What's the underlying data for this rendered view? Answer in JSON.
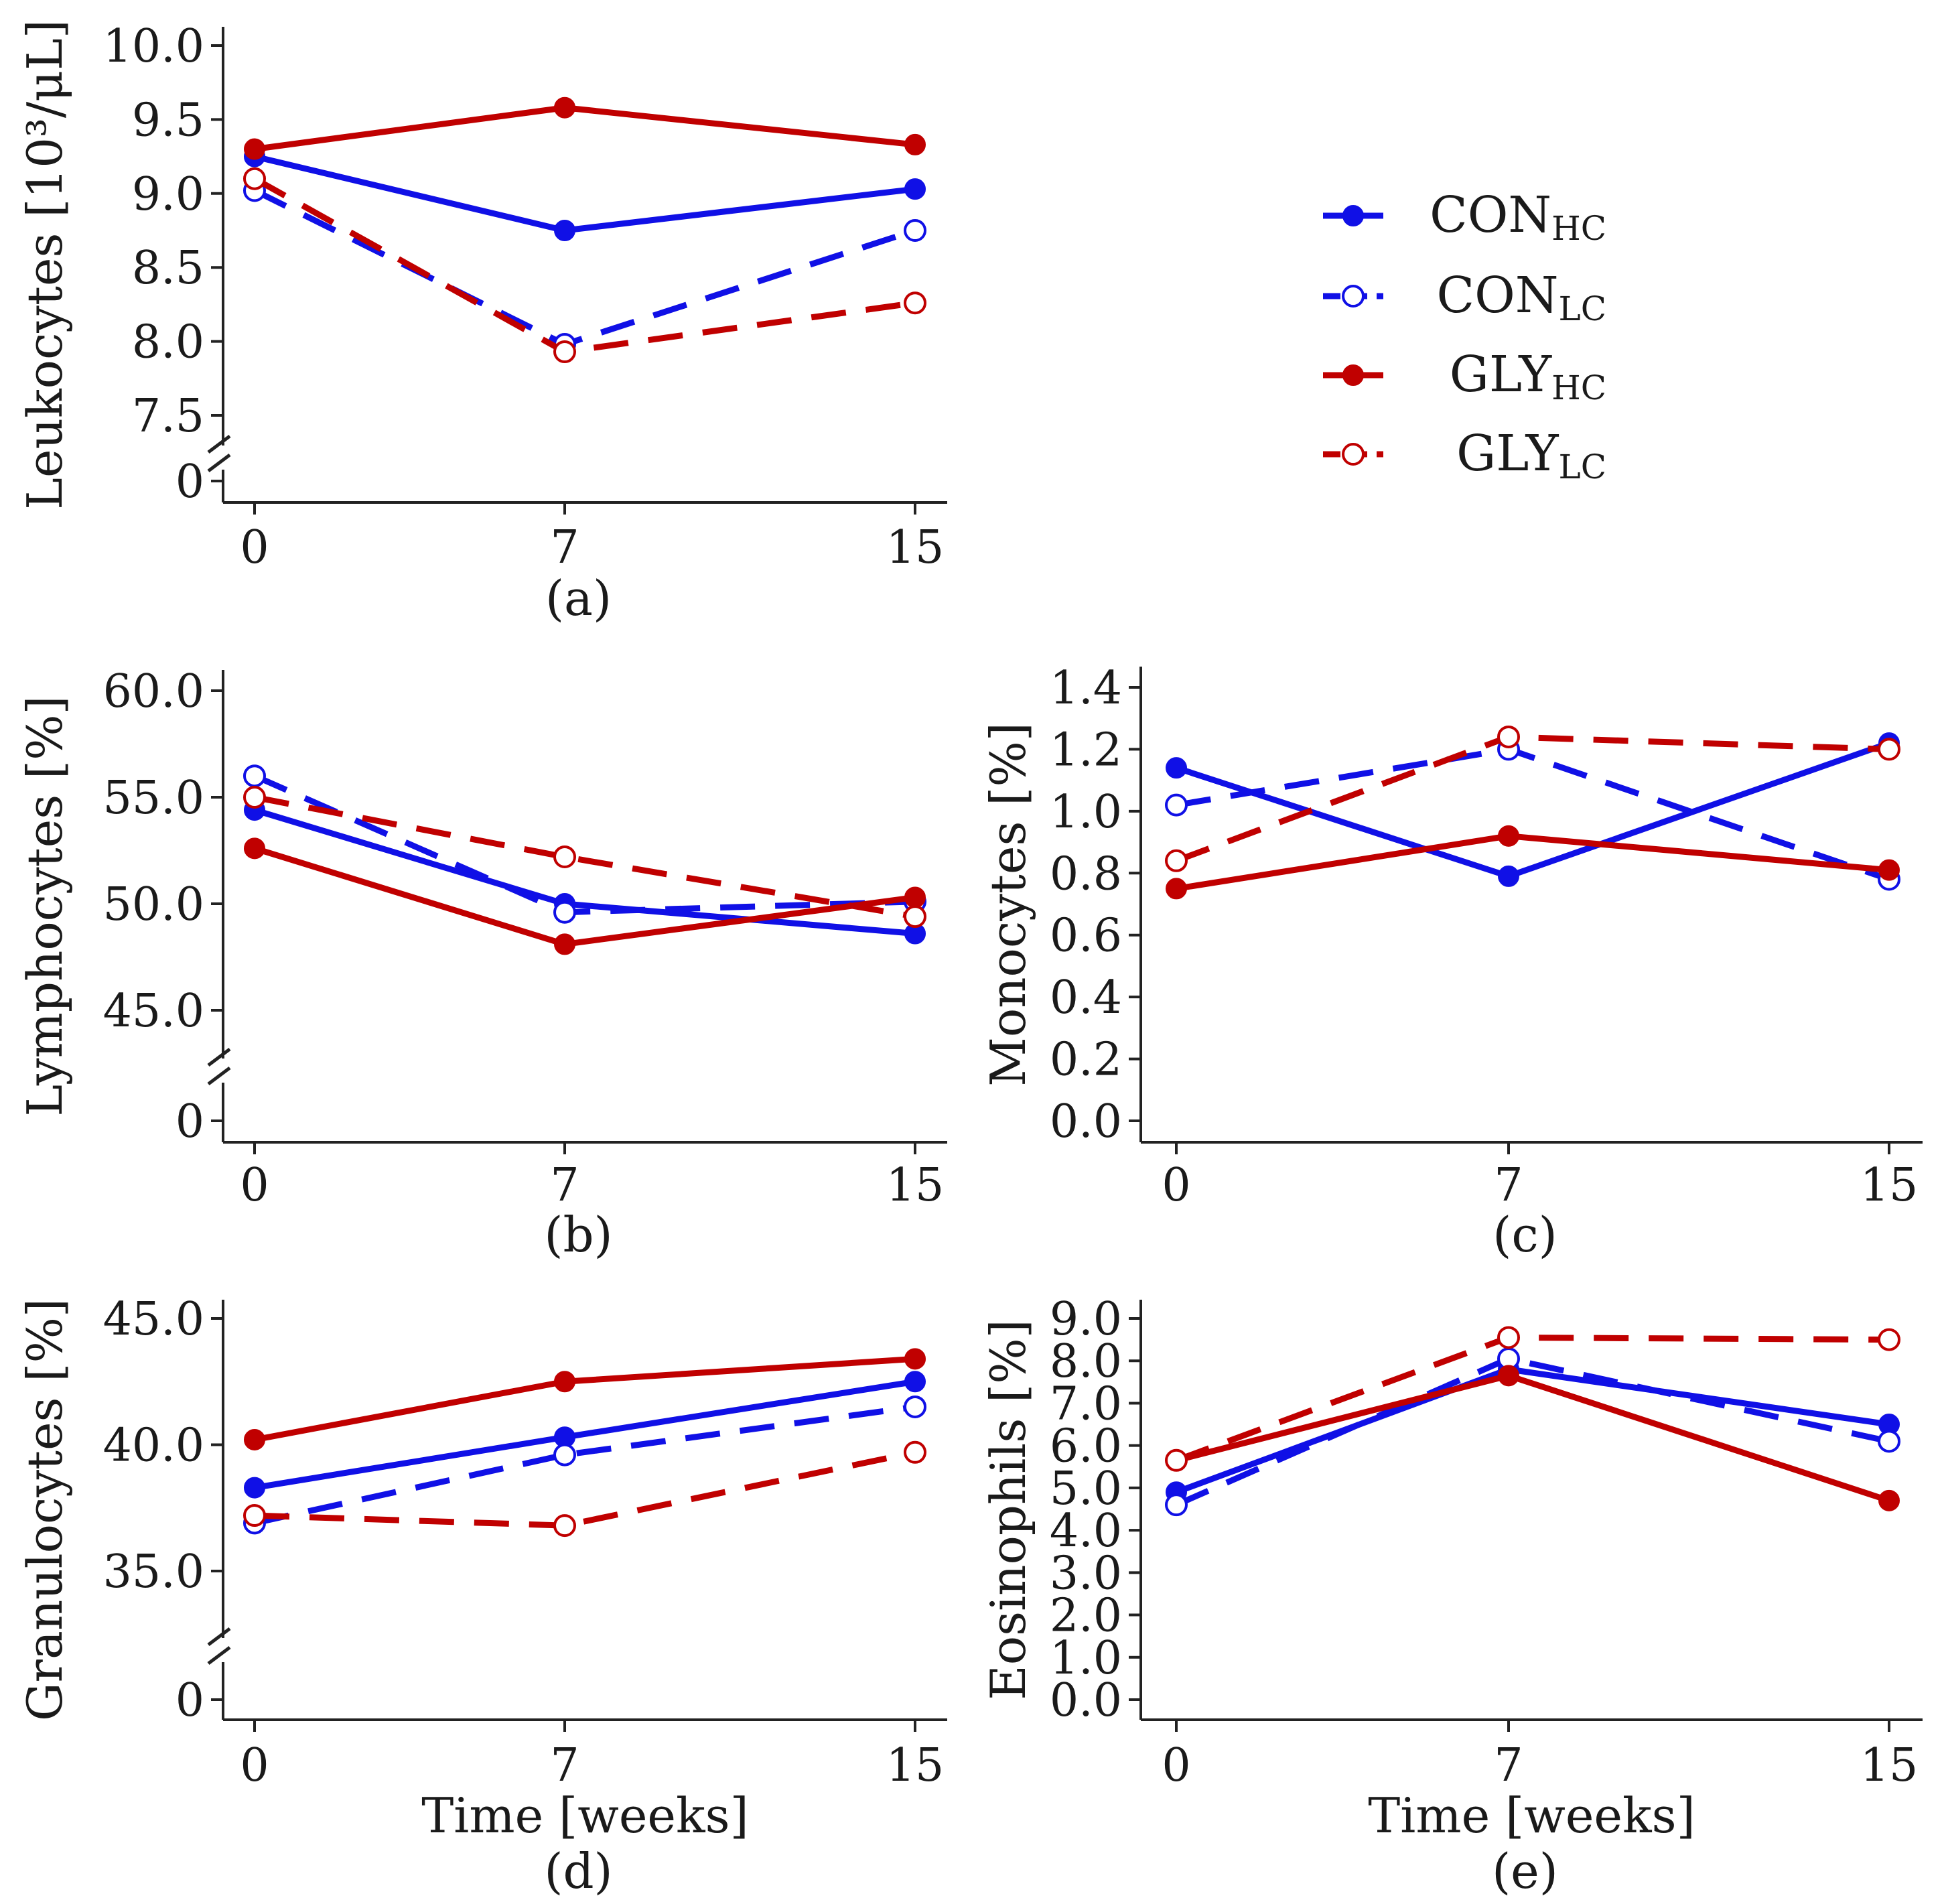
{
  "legend": {
    "entries": [
      {
        "name": "CON",
        "sub": "HC",
        "color": "#1010e6",
        "dashed": false,
        "filled": true
      },
      {
        "name": "CON",
        "sub": "LC",
        "color": "#1010e6",
        "dashed": true,
        "filled": false
      },
      {
        "name": "GLY",
        "sub": "HC",
        "color": "#c00000",
        "dashed": false,
        "filled": true
      },
      {
        "name": "GLY",
        "sub": "LC",
        "color": "#c00000",
        "dashed": true,
        "filled": false
      }
    ]
  },
  "chart_data": [
    {
      "id": "a",
      "type": "line",
      "caption": "(a)",
      "ylabel": "Leukocytes [10³/μL]",
      "xlabel": "",
      "x": [
        0,
        7,
        15
      ],
      "xticks": [
        "0",
        "7",
        "15"
      ],
      "ylim": [
        7.5,
        10.0
      ],
      "yticks": [
        "7.5",
        "8.0",
        "8.5",
        "9.0",
        "9.5",
        "10.0"
      ],
      "ybreak_zero": true,
      "series": [
        {
          "name": "CON_HC",
          "values": [
            9.25,
            8.75,
            9.03
          ]
        },
        {
          "name": "CON_LC",
          "values": [
            9.02,
            7.98,
            8.75
          ]
        },
        {
          "name": "GLY_HC",
          "values": [
            9.3,
            9.58,
            9.33
          ]
        },
        {
          "name": "GLY_LC",
          "values": [
            9.1,
            7.93,
            8.26
          ]
        }
      ]
    },
    {
      "id": "b",
      "type": "line",
      "caption": "(b)",
      "ylabel": "Lymphocytes [%]",
      "xlabel": "",
      "x": [
        0,
        7,
        15
      ],
      "xticks": [
        "0",
        "7",
        "15"
      ],
      "ylim": [
        45.0,
        60.0
      ],
      "yticks": [
        "45.0",
        "50.0",
        "55.0",
        "60.0"
      ],
      "ybreak_zero": true,
      "series": [
        {
          "name": "CON_HC",
          "values": [
            54.4,
            50.0,
            48.6
          ]
        },
        {
          "name": "CON_LC",
          "values": [
            56.0,
            49.6,
            50.1
          ]
        },
        {
          "name": "GLY_HC",
          "values": [
            52.6,
            48.1,
            50.3
          ]
        },
        {
          "name": "GLY_LC",
          "values": [
            55.0,
            52.2,
            49.4
          ]
        }
      ]
    },
    {
      "id": "c",
      "type": "line",
      "caption": "(c)",
      "ylabel": "Monocytes [%]",
      "xlabel": "",
      "x": [
        0,
        7,
        15
      ],
      "xticks": [
        "0",
        "7",
        "15"
      ],
      "ylim": [
        0.0,
        1.4
      ],
      "yticks": [
        "0.0",
        "0.2",
        "0.4",
        "0.6",
        "0.8",
        "1.0",
        "1.2",
        "1.4"
      ],
      "ybreak_zero": false,
      "series": [
        {
          "name": "CON_HC",
          "values": [
            1.14,
            0.79,
            1.22
          ]
        },
        {
          "name": "CON_LC",
          "values": [
            1.02,
            1.2,
            0.78
          ]
        },
        {
          "name": "GLY_HC",
          "values": [
            0.75,
            0.92,
            0.81
          ]
        },
        {
          "name": "GLY_LC",
          "values": [
            0.84,
            1.24,
            1.2
          ]
        }
      ]
    },
    {
      "id": "d",
      "type": "line",
      "caption": "(d)",
      "ylabel": "Granulocytes [%]",
      "xlabel": "Time [weeks]",
      "x": [
        0,
        7,
        15
      ],
      "xticks": [
        "0",
        "7",
        "15"
      ],
      "ylim": [
        35.0,
        45.0
      ],
      "yticks": [
        "35.0",
        "40.0",
        "45.0"
      ],
      "ybreak_zero": true,
      "series": [
        {
          "name": "CON_HC",
          "values": [
            38.3,
            40.3,
            42.5
          ]
        },
        {
          "name": "CON_LC",
          "values": [
            36.9,
            39.6,
            41.5
          ]
        },
        {
          "name": "GLY_HC",
          "values": [
            40.2,
            42.5,
            43.4
          ]
        },
        {
          "name": "GLY_LC",
          "values": [
            37.2,
            36.8,
            39.7
          ]
        }
      ]
    },
    {
      "id": "e",
      "type": "line",
      "caption": "(e)",
      "ylabel": "Eosinophils [%]",
      "xlabel": "Time [weeks]",
      "x": [
        0,
        7,
        15
      ],
      "xticks": [
        "0",
        "7",
        "15"
      ],
      "ylim": [
        0.0,
        9.0
      ],
      "yticks": [
        "0.0",
        "1.0",
        "2.0",
        "3.0",
        "4.0",
        "5.0",
        "6.0",
        "7.0",
        "8.0",
        "9.0"
      ],
      "ybreak_zero": false,
      "series": [
        {
          "name": "CON_HC",
          "values": [
            4.9,
            7.8,
            6.5
          ]
        },
        {
          "name": "CON_LC",
          "values": [
            4.6,
            8.05,
            6.1
          ]
        },
        {
          "name": "GLY_HC",
          "values": [
            5.65,
            7.65,
            4.7
          ]
        },
        {
          "name": "GLY_LC",
          "values": [
            5.65,
            8.55,
            8.5
          ]
        }
      ]
    }
  ]
}
